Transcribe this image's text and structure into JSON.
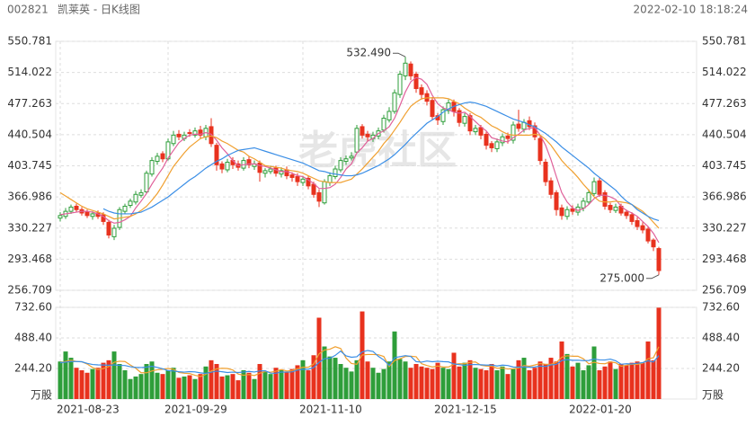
{
  "header": {
    "code": "002821",
    "title": "凯莱英 - 日K线图",
    "time": "2022-02-10 18:18:24"
  },
  "chart_data": [
    {
      "type": "candlestick",
      "watermark": "老虎社区",
      "categories": [
        "2021-08-23",
        null,
        null,
        null,
        null,
        null,
        null,
        null,
        null,
        null,
        null,
        null,
        null,
        null,
        null,
        null,
        null,
        null,
        null,
        null,
        "2021-09-29",
        null,
        null,
        null,
        null,
        null,
        null,
        null,
        null,
        null,
        null,
        null,
        null,
        null,
        null,
        null,
        null,
        null,
        null,
        null,
        null,
        null,
        null,
        null,
        null,
        "2021-11-10",
        null,
        null,
        null,
        null,
        null,
        null,
        null,
        null,
        null,
        null,
        null,
        null,
        null,
        null,
        null,
        null,
        null,
        null,
        null,
        null,
        null,
        null,
        null,
        null,
        "2021-12-15",
        null,
        null,
        null,
        null,
        null,
        null,
        null,
        null,
        null,
        null,
        null,
        null,
        null,
        null,
        null,
        null,
        null,
        null,
        null,
        null,
        null,
        null,
        null,
        null,
        "2022-01-20",
        null,
        null,
        null,
        null,
        null,
        null,
        null,
        null,
        null,
        null,
        null,
        null,
        null,
        null,
        null,
        null
      ],
      "open": [
        342,
        344,
        350,
        356,
        352,
        349,
        344,
        348,
        346,
        337,
        320,
        331,
        350,
        357,
        361,
        369,
        373,
        394,
        409,
        418,
        412,
        430,
        441,
        436,
        443,
        440,
        446,
        438,
        450,
        428,
        406,
        399,
        410,
        406,
        401,
        411,
        403,
        407,
        395,
        397,
        401,
        394,
        399,
        393,
        391,
        384,
        389,
        382,
        372,
        360,
        384,
        391,
        399,
        409,
        413,
        420,
        450,
        441,
        436,
        439,
        446,
        458,
        468,
        488,
        510,
        524,
        512,
        496,
        489,
        481,
        463,
        456,
        469,
        479,
        469,
        454,
        463,
        444,
        449,
        441,
        430,
        424,
        431,
        439,
        434,
        453,
        447,
        457,
        451,
        436,
        408,
        386,
        372,
        354,
        344,
        353,
        349,
        354,
        361,
        371,
        386,
        372,
        357,
        351,
        356,
        349,
        346,
        339,
        333,
        329,
        316,
        306
      ],
      "high": [
        349,
        354,
        358,
        359,
        355,
        352,
        350,
        351,
        349,
        340,
        334,
        355,
        359,
        365,
        374,
        376,
        398,
        414,
        419,
        421,
        436,
        445,
        446,
        444,
        447,
        449,
        451,
        452,
        460,
        431,
        409,
        412,
        414,
        410,
        414,
        415,
        410,
        410,
        401,
        404,
        404,
        402,
        403,
        396,
        395,
        392,
        392,
        385,
        376,
        388,
        396,
        404,
        414,
        416,
        420,
        452,
        453,
        445,
        444,
        449,
        464,
        473,
        494,
        516,
        532.49,
        527,
        515,
        500,
        493,
        485,
        466,
        474,
        482,
        482,
        472,
        466,
        466,
        452,
        452,
        444,
        433,
        436,
        442,
        443,
        456,
        470,
        459,
        462,
        455,
        440,
        412,
        390,
        375,
        358,
        356,
        357,
        359,
        366,
        376,
        390,
        390,
        375,
        360,
        359,
        359,
        352,
        349,
        343,
        337,
        332,
        318,
        308
      ],
      "low": [
        338,
        341,
        347,
        349,
        345,
        342,
        340,
        341,
        334,
        318,
        316,
        328,
        347,
        354,
        358,
        366,
        371,
        391,
        405,
        408,
        410,
        427,
        434,
        433,
        438,
        437,
        436,
        434,
        426,
        398,
        395,
        396,
        400,
        398,
        398,
        401,
        399,
        385,
        390,
        394,
        391,
        390,
        388,
        385,
        380,
        380,
        376,
        366,
        355,
        358,
        380,
        388,
        396,
        405,
        410,
        418,
        436,
        433,
        432,
        435,
        443,
        455,
        465,
        484,
        505,
        505,
        490,
        482,
        475,
        458,
        452,
        452,
        465,
        462,
        450,
        450,
        440,
        440,
        435,
        423,
        420,
        420,
        427,
        430,
        430,
        444,
        443,
        446,
        434,
        405,
        380,
        365,
        345,
        340,
        340,
        346,
        345,
        350,
        358,
        368,
        367,
        352,
        348,
        348,
        345,
        341,
        334,
        328,
        324,
        312,
        303,
        275
      ],
      "close": [
        345,
        350,
        355,
        352,
        348,
        345,
        347,
        344,
        338,
        322,
        330,
        352,
        356,
        362,
        370,
        372,
        395,
        410,
        415,
        412,
        432,
        440,
        438,
        440,
        442,
        445,
        440,
        448,
        430,
        405,
        400,
        408,
        405,
        402,
        410,
        405,
        406,
        396,
        398,
        400,
        395,
        398,
        392,
        390,
        385,
        388,
        380,
        370,
        362,
        385,
        392,
        400,
        410,
        412,
        415,
        448,
        440,
        438,
        440,
        445,
        460,
        468,
        490,
        512,
        525,
        510,
        495,
        488,
        480,
        462,
        458,
        470,
        478,
        468,
        455,
        462,
        445,
        448,
        440,
        428,
        425,
        432,
        438,
        436,
        452,
        448,
        455,
        450,
        438,
        410,
        385,
        370,
        352,
        345,
        352,
        350,
        355,
        362,
        372,
        385,
        370,
        356,
        352,
        355,
        348,
        345,
        338,
        332,
        328,
        315,
        308,
        280
      ],
      "up_color": "#2e9e3a",
      "down_color": "#e8321e",
      "lines": [
        {
          "color": "#e0609a",
          "values": [
            346,
            347,
            348,
            349,
            350,
            350,
            349,
            347,
            344,
            339,
            336,
            337,
            340,
            344,
            354,
            362,
            371,
            382,
            392,
            401,
            413,
            422,
            431,
            436,
            440,
            441,
            441,
            443,
            441,
            434,
            425,
            418,
            410,
            404,
            405,
            406,
            406,
            404,
            403,
            401,
            399,
            397,
            397,
            395,
            392,
            391,
            387,
            383,
            377,
            377,
            378,
            382,
            390,
            400,
            406,
            419,
            425,
            433,
            436,
            442,
            445,
            450,
            460,
            475,
            491,
            503,
            508,
            506,
            500,
            487,
            477,
            472,
            470,
            467,
            466,
            467,
            462,
            456,
            450,
            445,
            437,
            435,
            433,
            432,
            437,
            441,
            446,
            448,
            449,
            440,
            428,
            411,
            391,
            372,
            361,
            354,
            351,
            353,
            358,
            365,
            369,
            369,
            367,
            364,
            356,
            351,
            348,
            344,
            338,
            332,
            324,
            313
          ]
        },
        {
          "color": "#f0a030",
          "values": [
            372,
            368,
            364,
            360,
            356,
            353,
            351,
            349,
            347,
            344,
            341,
            342,
            343,
            344,
            347,
            351,
            356,
            363,
            371,
            381,
            392,
            403,
            411,
            419,
            426,
            431,
            436,
            438,
            439,
            437,
            433,
            430,
            426,
            422,
            420,
            415,
            412,
            408,
            404,
            403,
            402,
            401,
            399,
            398,
            397,
            395,
            392,
            389,
            386,
            385,
            384,
            384,
            384,
            386,
            388,
            394,
            400,
            407,
            414,
            421,
            430,
            437,
            446,
            455,
            465,
            474,
            479,
            483,
            484,
            484,
            484,
            484,
            483,
            480,
            477,
            472,
            468,
            464,
            461,
            456,
            451,
            448,
            444,
            441,
            440,
            440,
            440,
            440,
            441,
            440,
            435,
            428,
            419,
            410,
            403,
            397,
            390,
            382,
            375,
            367,
            362,
            361,
            361,
            362,
            361,
            360,
            358,
            354,
            350,
            344,
            337,
            330
          ]
        },
        {
          "color": "#3a8ee6",
          "values": [
            null,
            null,
            null,
            null,
            null,
            null,
            null,
            null,
            353,
            350,
            348,
            347,
            347,
            347,
            348,
            349,
            352,
            355,
            359,
            363,
            367,
            372,
            377,
            382,
            387,
            391,
            396,
            401,
            405,
            409,
            412,
            416,
            419,
            422,
            423,
            424,
            425,
            423,
            421,
            419,
            417,
            415,
            413,
            411,
            409,
            407,
            404,
            401,
            398,
            397,
            395,
            394,
            393,
            392,
            392,
            393,
            395,
            398,
            401,
            404,
            408,
            412,
            417,
            423,
            429,
            436,
            442,
            448,
            454,
            458,
            462,
            467,
            471,
            474,
            476,
            478,
            479,
            478,
            476,
            474,
            471,
            468,
            465,
            462,
            459,
            457,
            455,
            452,
            450,
            446,
            442,
            437,
            432,
            426,
            421,
            416,
            411,
            406,
            401,
            395,
            390,
            385,
            380,
            375,
            368,
            362,
            358,
            352,
            348,
            344,
            341,
            339
          ]
        }
      ],
      "ylim": [
        256.709,
        550.781
      ],
      "yticks": [
        256.709,
        293.468,
        330.227,
        366.986,
        403.745,
        440.504,
        477.263,
        514.022,
        550.781
      ],
      "grid": true,
      "max_label": "532.490",
      "min_label": "275.000"
    },
    {
      "type": "bar",
      "unit_label": "万股",
      "values": [
        300,
        380,
        330,
        250,
        230,
        210,
        240,
        250,
        290,
        310,
        380,
        280,
        230,
        160,
        180,
        200,
        280,
        300,
        210,
        200,
        230,
        250,
        170,
        180,
        190,
        160,
        200,
        260,
        310,
        280,
        180,
        190,
        200,
        150,
        230,
        210,
        160,
        280,
        220,
        200,
        250,
        230,
        220,
        240,
        270,
        310,
        230,
        350,
        650,
        420,
        340,
        330,
        280,
        250,
        220,
        310,
        700,
        300,
        250,
        210,
        240,
        300,
        540,
        320,
        300,
        250,
        280,
        260,
        250,
        240,
        290,
        250,
        240,
        370,
        260,
        290,
        310,
        250,
        240,
        230,
        280,
        230,
        260,
        200,
        240,
        310,
        330,
        230,
        250,
        300,
        280,
        330,
        300,
        460,
        360,
        260,
        290,
        230,
        270,
        420,
        230,
        260,
        300,
        240,
        280,
        270,
        290,
        300,
        290,
        460,
        310,
        730
      ],
      "lines": [
        {
          "color": "#f0a030",
          "values": [
            290,
            300,
            310,
            300,
            298,
            280,
            252,
            236,
            244,
            260,
            294,
            302,
            300,
            272,
            246,
            210,
            210,
            224,
            234,
            238,
            244,
            238,
            212,
            206,
            204,
            190,
            180,
            198,
            224,
            242,
            246,
            244,
            232,
            200,
            190,
            196,
            188,
            206,
            220,
            214,
            222,
            236,
            224,
            228,
            242,
            254,
            254,
            280,
            362,
            392,
            398,
            418,
            404,
            328,
            284,
            278,
            352,
            356,
            356,
            354,
            340,
            260,
            308,
            322,
            340,
            342,
            338,
            282,
            268,
            256,
            264,
            256,
            256,
            278,
            282,
            282,
            294,
            296,
            270,
            264,
            262,
            246,
            248,
            240,
            242,
            248,
            268,
            262,
            272,
            284,
            278,
            278,
            292,
            334,
            346,
            342,
            342,
            322,
            282,
            294,
            284,
            282,
            296,
            290,
            262,
            270,
            278,
            276,
            286,
            322,
            330,
            418
          ]
        },
        {
          "color": "#3a8ee6",
          "values": [
            290,
            295,
            300,
            300,
            298,
            285,
            276,
            273,
            272,
            270,
            273,
            269,
            268,
            258,
            253,
            252,
            255,
            262,
            253,
            242,
            227,
            224,
            218,
            215,
            219,
            217,
            209,
            205,
            214,
            223,
            218,
            212,
            215,
            212,
            216,
            221,
            216,
            225,
            226,
            207,
            206,
            216,
            215,
            217,
            231,
            238,
            238,
            252,
            293,
            323,
            326,
            349,
            383,
            345,
            334,
            338,
            377,
            388,
            380,
            341,
            312,
            269,
            330,
            339,
            347,
            341,
            299,
            295,
            304,
            298,
            302,
            299,
            297,
            280,
            275,
            269,
            275,
            276,
            274,
            271,
            272,
            264,
            271,
            268,
            256,
            255,
            257,
            254,
            256,
            263,
            260,
            273,
            277,
            308,
            315,
            310,
            310,
            307,
            308,
            320,
            313,
            312,
            319,
            306,
            278,
            282,
            280,
            286,
            291,
            306,
            296,
            347
          ]
        }
      ],
      "ylim": [
        0,
        732.6
      ],
      "yticks": [
        {
          "value": 244.2,
          "label": "244.20"
        },
        {
          "value": 488.4,
          "label": "488.40"
        },
        {
          "value": 732.6,
          "label": "732.60"
        }
      ]
    }
  ]
}
